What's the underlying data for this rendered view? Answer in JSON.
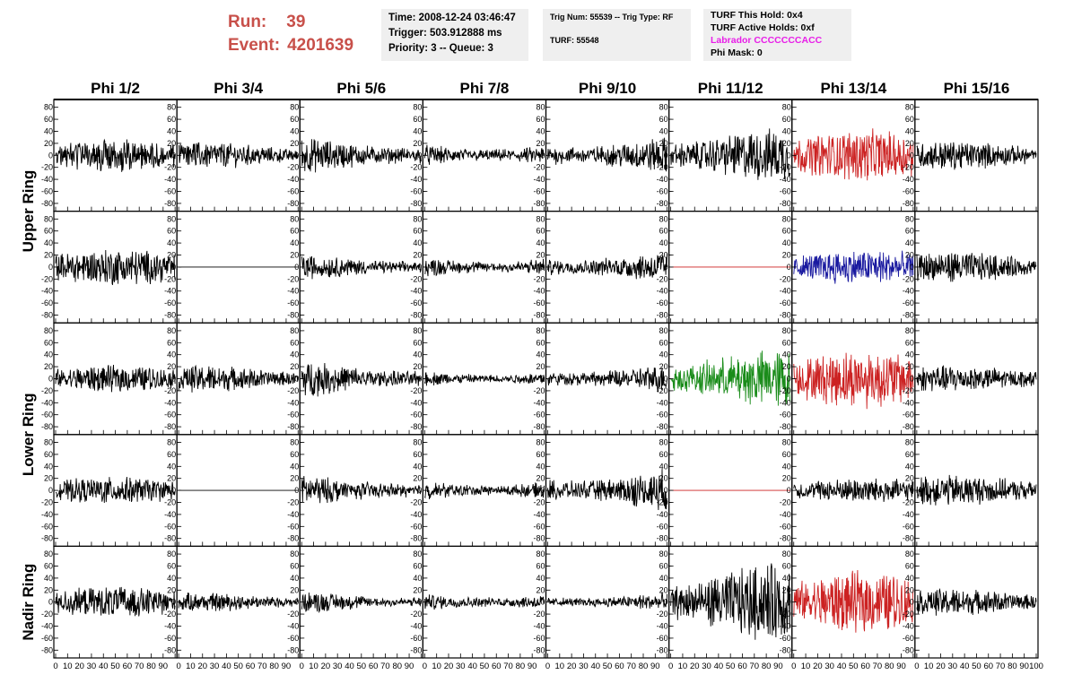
{
  "header": {
    "run_label": "Run:",
    "run_value": "39",
    "event_label": "Event:",
    "event_value": "4201639",
    "time": "Time: 2008-12-24 03:46:47",
    "trigger": "Trigger: 503.912888 ms",
    "priority": "Priority: 3 -- Queue: 3",
    "trig_num": "Trig Num: 55539 -- Trig Type: RF",
    "turf": "TURF: 55548",
    "turf_this_hold": "TURF This Hold: 0x4",
    "turf_active_holds": "TURF Active Holds: 0xf",
    "labrador": "Labrador CCCCCCCACC",
    "phi_mask": "Phi Mask: 0"
  },
  "colors": {
    "header_red": "#c8504a",
    "labrador": "#e81ee8",
    "black": "#000000",
    "red": "#cc2222",
    "blue": "#1a1aa0",
    "green": "#1a8c1a",
    "panel_bg": "#ffffff"
  },
  "chart_data": {
    "type": "line",
    "columns": [
      "Phi 1/2",
      "Phi 3/4",
      "Phi 5/6",
      "Phi 7/8",
      "Phi 9/10",
      "Phi 11/12",
      "Phi 13/14",
      "Phi 15/16"
    ],
    "rows": [
      "Upper Ring",
      "Upper Ring",
      "Lower Ring",
      "Lower Ring",
      "Nadir Ring"
    ],
    "row_labels": [
      {
        "text": "Upper Ring",
        "rows": [
          0,
          1
        ]
      },
      {
        "text": "Lower Ring",
        "rows": [
          2,
          3
        ]
      },
      {
        "text": "Nadir Ring",
        "rows": [
          4
        ]
      }
    ],
    "xlim": [
      0,
      100
    ],
    "ylim": [
      -90,
      90
    ],
    "y_ticks": [
      -80,
      -60,
      -40,
      -20,
      0,
      20,
      40,
      60,
      80
    ],
    "x_ticks": [
      0,
      10,
      20,
      30,
      40,
      50,
      60,
      70,
      80,
      90,
      100
    ],
    "panels": [
      [
        {
          "amp": 16,
          "color": "black",
          "flat": false
        },
        {
          "amp": 13,
          "color": "black",
          "flat": false
        },
        {
          "amp": 18,
          "color": "black",
          "flat": false
        },
        {
          "amp": 14,
          "color": "black",
          "flat": false
        },
        {
          "amp": 20,
          "color": "black",
          "flat": false
        },
        {
          "amp": 26,
          "color": "black",
          "flat": false
        },
        {
          "amp": 25,
          "color": "red",
          "flat": false
        },
        {
          "amp": 14,
          "color": "black",
          "flat": false
        }
      ],
      [
        {
          "amp": 18,
          "color": "black",
          "flat": false
        },
        {
          "amp": 0,
          "color": "black",
          "flat": true
        },
        {
          "amp": 13,
          "color": "black",
          "flat": false
        },
        {
          "amp": 13,
          "color": "black",
          "flat": false
        },
        {
          "amp": 17,
          "color": "black",
          "flat": false
        },
        {
          "amp": 0,
          "color": "red",
          "flat": true
        },
        {
          "amp": 17,
          "color": "blue",
          "flat": false
        },
        {
          "amp": 15,
          "color": "black",
          "flat": false
        }
      ],
      [
        {
          "amp": 13,
          "color": "black",
          "flat": false
        },
        {
          "amp": 13,
          "color": "black",
          "flat": false
        },
        {
          "amp": 18,
          "color": "black",
          "flat": false
        },
        {
          "amp": 10,
          "color": "black",
          "flat": false
        },
        {
          "amp": 15,
          "color": "black",
          "flat": false
        },
        {
          "amp": 28,
          "color": "green",
          "flat": false
        },
        {
          "amp": 28,
          "color": "red",
          "flat": false
        },
        {
          "amp": 13,
          "color": "black",
          "flat": false
        }
      ],
      [
        {
          "amp": 13,
          "color": "black",
          "flat": false
        },
        {
          "amp": 0,
          "color": "black",
          "flat": true
        },
        {
          "amp": 15,
          "color": "black",
          "flat": false
        },
        {
          "amp": 12,
          "color": "black",
          "flat": false
        },
        {
          "amp": 22,
          "color": "black",
          "flat": false
        },
        {
          "amp": 0,
          "color": "red",
          "flat": true
        },
        {
          "amp": 12,
          "color": "black",
          "flat": false
        },
        {
          "amp": 15,
          "color": "black",
          "flat": false
        }
      ],
      [
        {
          "amp": 15,
          "color": "black",
          "flat": false
        },
        {
          "amp": 9,
          "color": "black",
          "flat": false
        },
        {
          "amp": 11,
          "color": "black",
          "flat": false
        },
        {
          "amp": 11,
          "color": "black",
          "flat": false
        },
        {
          "amp": 10,
          "color": "black",
          "flat": false
        },
        {
          "amp": 38,
          "color": "black",
          "flat": false
        },
        {
          "amp": 30,
          "color": "red",
          "flat": false
        },
        {
          "amp": 13,
          "color": "black",
          "flat": false
        }
      ]
    ]
  }
}
